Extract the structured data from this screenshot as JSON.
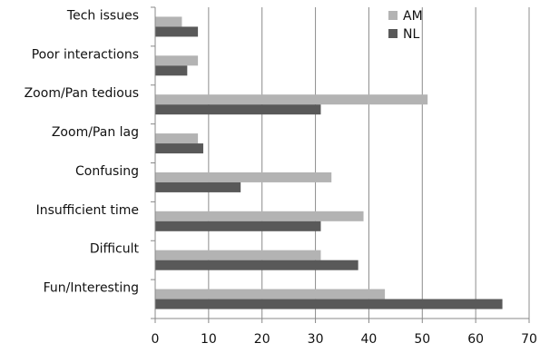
{
  "chart_data": {
    "type": "bar",
    "orientation": "horizontal",
    "categories": [
      "Fun/Interesting",
      "Difficult",
      "Insufficient time",
      "Confusing",
      "Zoom/Pan lag",
      "Zoom/Pan tedious",
      "Poor interactions",
      "Tech issues"
    ],
    "series": [
      {
        "name": "AM",
        "values": [
          43,
          31,
          39,
          33,
          8,
          51,
          8,
          5
        ],
        "color": "#b3b3b3"
      },
      {
        "name": "NL",
        "values": [
          65,
          38,
          31,
          16,
          9,
          31,
          6,
          8
        ],
        "color": "#595959"
      }
    ],
    "xlim": [
      0,
      70
    ],
    "xticks": [
      0,
      10,
      20,
      30,
      40,
      50,
      60,
      70
    ],
    "grid": "vertical",
    "legend": "top-right"
  }
}
